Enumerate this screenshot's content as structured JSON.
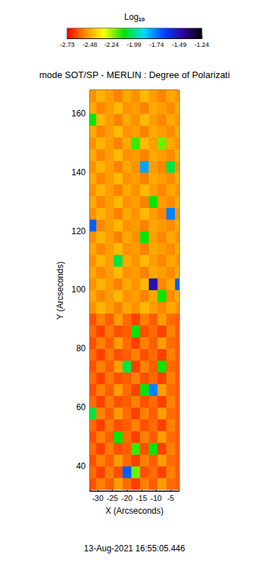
{
  "chart_data": {
    "type": "heatmap",
    "title": "mode SOT/SP - MERLIN : Degree of Polarizati",
    "x_label": "X (Arcseconds)",
    "y_label": "Y (Arcseconds)",
    "annotation": "13-Aug-2021 16:55:05.446",
    "xlim": [
      -32.7,
      -2.1
    ],
    "ylim": [
      31.5,
      168
    ],
    "xticks": [
      -30,
      -25,
      -20,
      -15,
      -10,
      -5
    ],
    "yticks": [
      40,
      60,
      80,
      100,
      120,
      140,
      160
    ],
    "colorbar": {
      "label": "Log",
      "label_subscript": "10",
      "range": [
        -2.73,
        -1.24
      ],
      "ticks": [
        -2.73,
        -2.48,
        -2.24,
        -1.99,
        -1.74,
        -1.49,
        -1.24
      ]
    },
    "x": [
      -32,
      -29,
      -26,
      -23,
      -20,
      -17,
      -14,
      -11,
      -8,
      -5,
      -2
    ],
    "y": [
      34,
      38,
      42,
      46,
      50,
      54,
      58,
      62,
      66,
      70,
      74,
      78,
      82,
      86,
      90,
      94,
      98,
      102,
      106,
      110,
      114,
      118,
      122,
      126,
      130,
      134,
      138,
      142,
      146,
      150,
      154,
      158,
      162,
      166
    ],
    "z": [
      [
        -2.62,
        -2.55,
        -2.6,
        -2.5,
        -2.58,
        -2.64,
        -2.55,
        -2.6,
        -2.5,
        -2.58,
        -2.6
      ],
      [
        -2.58,
        -2.64,
        -2.56,
        -2.62,
        -1.7,
        -2.2,
        -2.62,
        -2.58,
        -2.64,
        -2.55,
        -2.6
      ],
      [
        -2.62,
        -2.55,
        -2.6,
        -2.5,
        -2.58,
        -2.64,
        -2.55,
        -2.6,
        -2.5,
        -2.58,
        -2.6
      ],
      [
        -2.58,
        -2.64,
        -2.56,
        -2.62,
        -2.6,
        -2.15,
        -2.62,
        -2.1,
        -2.64,
        -2.55,
        -2.6
      ],
      [
        -2.62,
        -2.55,
        -2.6,
        -2.1,
        -2.58,
        -2.64,
        -2.55,
        -2.6,
        -2.5,
        -2.58,
        -2.6
      ],
      [
        -2.58,
        -2.64,
        -2.56,
        -2.62,
        -2.6,
        -2.55,
        -2.62,
        -2.58,
        -2.64,
        -2.55,
        -2.6
      ],
      [
        -2.05,
        -2.55,
        -2.6,
        -2.5,
        -2.58,
        -2.64,
        -2.55,
        -2.6,
        -2.5,
        -2.58,
        -2.6
      ],
      [
        -2.58,
        -2.64,
        -2.56,
        -2.62,
        -2.6,
        -2.55,
        -2.62,
        -2.58,
        -2.64,
        -2.55,
        -2.6
      ],
      [
        -2.62,
        -2.55,
        -2.6,
        -2.5,
        -2.58,
        -2.64,
        -2.1,
        -1.75,
        -2.5,
        -2.58,
        -2.6
      ],
      [
        -2.58,
        -2.64,
        -2.56,
        -2.62,
        -2.6,
        -2.55,
        -2.62,
        -2.58,
        -2.64,
        -2.55,
        -2.6
      ],
      [
        -2.62,
        -2.55,
        -2.6,
        -2.5,
        -2.05,
        -2.64,
        -2.55,
        -2.6,
        -2.1,
        -2.58,
        -2.6
      ],
      [
        -2.58,
        -2.64,
        -2.56,
        -2.62,
        -2.6,
        -2.55,
        -2.62,
        -2.58,
        -2.64,
        -2.55,
        -2.6
      ],
      [
        -2.62,
        -2.55,
        -2.6,
        -2.5,
        -2.58,
        -2.64,
        -2.55,
        -2.6,
        -2.5,
        -2.58,
        -2.6
      ],
      [
        -2.58,
        -2.64,
        -2.56,
        -2.62,
        -2.6,
        -2.1,
        -2.62,
        -2.58,
        -2.64,
        -2.55,
        -2.6
      ],
      [
        -2.62,
        -2.55,
        -2.6,
        -2.5,
        -2.58,
        -2.64,
        -2.55,
        -2.6,
        -2.5,
        -2.58,
        -2.6
      ],
      [
        -2.52,
        -2.46,
        -2.5,
        -2.55,
        -2.48,
        -2.52,
        -2.45,
        -2.5,
        -2.54,
        -2.48,
        -2.52
      ],
      [
        -2.48,
        -2.54,
        -2.5,
        -2.45,
        -2.52,
        -2.5,
        -2.55,
        -2.48,
        -2.1,
        -2.53,
        -2.47
      ],
      [
        -2.52,
        -2.46,
        -2.5,
        -2.55,
        -2.48,
        -2.52,
        -2.45,
        -1.5,
        -2.54,
        -2.48,
        -1.7
      ],
      [
        -2.48,
        -2.54,
        -2.5,
        -2.45,
        -2.52,
        -2.5,
        -2.55,
        -2.48,
        -2.5,
        -2.53,
        -2.47
      ],
      [
        -2.52,
        -2.46,
        -2.5,
        -2.05,
        -2.48,
        -2.52,
        -2.45,
        -2.5,
        -2.54,
        -2.48,
        -2.52
      ],
      [
        -2.48,
        -2.54,
        -2.5,
        -2.45,
        -2.52,
        -2.5,
        -2.55,
        -2.48,
        -2.5,
        -2.53,
        -2.47
      ],
      [
        -2.52,
        -2.46,
        -2.5,
        -2.55,
        -2.48,
        -2.52,
        -2.1,
        -2.5,
        -2.54,
        -2.48,
        -2.52
      ],
      [
        -1.7,
        -2.54,
        -2.5,
        -2.45,
        -2.52,
        -2.5,
        -2.55,
        -2.48,
        -2.5,
        -2.53,
        -2.47
      ],
      [
        -2.52,
        -2.46,
        -2.5,
        -2.55,
        -2.48,
        -2.52,
        -2.45,
        -2.5,
        -2.54,
        -1.75,
        -2.52
      ],
      [
        -2.48,
        -2.54,
        -2.5,
        -2.45,
        -2.52,
        -2.5,
        -2.55,
        -2.1,
        -2.5,
        -2.53,
        -2.47
      ],
      [
        -2.52,
        -2.46,
        -2.5,
        -2.55,
        -2.48,
        -2.52,
        -2.45,
        -2.5,
        -2.54,
        -2.48,
        -2.52
      ],
      [
        -2.48,
        -2.54,
        -2.5,
        -2.45,
        -2.52,
        -2.5,
        -2.55,
        -2.48,
        -2.5,
        -2.53,
        -2.47
      ],
      [
        -2.52,
        -2.46,
        -2.5,
        -2.55,
        -2.48,
        -2.52,
        -1.8,
        -2.5,
        -2.54,
        -2.05,
        -2.52
      ],
      [
        -2.48,
        -2.54,
        -2.5,
        -2.45,
        -2.52,
        -2.5,
        -2.55,
        -2.48,
        -2.5,
        -2.53,
        -2.47
      ],
      [
        -2.52,
        -2.46,
        -2.5,
        -2.55,
        -2.48,
        -2.15,
        -2.45,
        -2.5,
        -2.2,
        -2.48,
        -2.52
      ],
      [
        -2.48,
        -2.54,
        -2.5,
        -2.45,
        -2.52,
        -2.5,
        -2.55,
        -2.48,
        -2.5,
        -2.53,
        -2.47
      ],
      [
        -2.1,
        -2.46,
        -2.5,
        -2.55,
        -2.48,
        -2.52,
        -2.45,
        -2.5,
        -2.54,
        -2.48,
        -2.52
      ],
      [
        -2.48,
        -2.54,
        -2.5,
        -2.45,
        -2.52,
        -2.5,
        -2.55,
        -2.48,
        -2.5,
        -2.53,
        -2.47
      ],
      [
        -2.52,
        -2.46,
        -2.5,
        -2.55,
        -2.48,
        -2.52,
        -2.45,
        -2.5,
        -2.54,
        -2.48,
        -2.52
      ]
    ]
  }
}
